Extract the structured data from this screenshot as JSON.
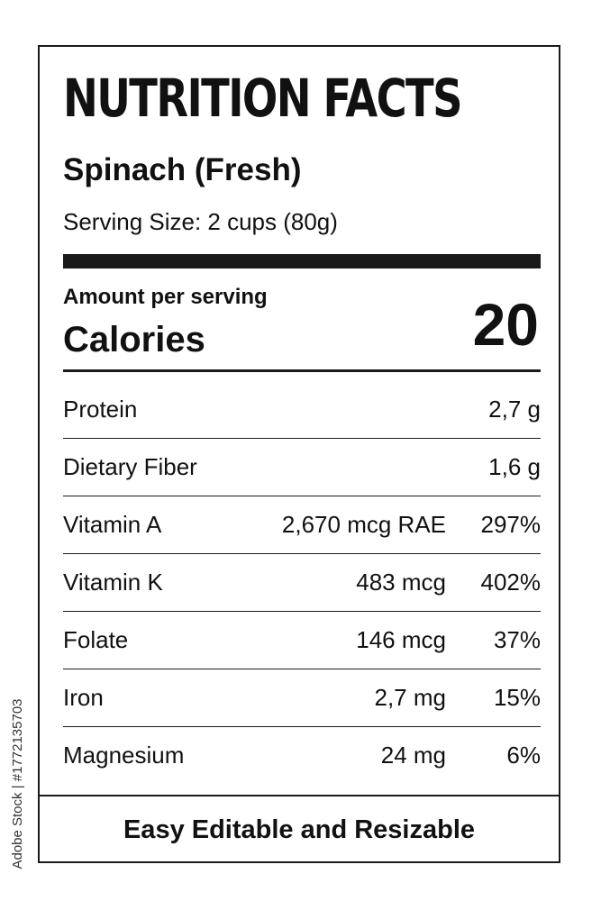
{
  "label": {
    "title": "NUTRITION FACTS",
    "product_name": "Spinach (Fresh)",
    "serving_size": "Serving Size: 2 cups (80g)",
    "amount_per_serving": "Amount per serving",
    "calories_label": "Calories",
    "calories_value": "20",
    "nutrients": [
      {
        "name": "Protein",
        "amount": "2,7 g",
        "daily_value": ""
      },
      {
        "name": "Dietary Fiber",
        "amount": "1,6 g",
        "daily_value": ""
      },
      {
        "name": "Vitamin A",
        "amount": "2,670 mcg RAE",
        "daily_value": "297%"
      },
      {
        "name": "Vitamin K",
        "amount": "483 mcg",
        "daily_value": "402%"
      },
      {
        "name": "Folate",
        "amount": "146 mcg",
        "daily_value": "37%"
      },
      {
        "name": "Iron",
        "amount": "2,7 mg",
        "daily_value": "15%"
      },
      {
        "name": "Magnesium",
        "amount": "24 mg",
        "daily_value": "6%"
      }
    ],
    "footer": "Easy Editable and Resizable"
  },
  "watermark": {
    "text": "Adobe Stock | #1772135703"
  }
}
